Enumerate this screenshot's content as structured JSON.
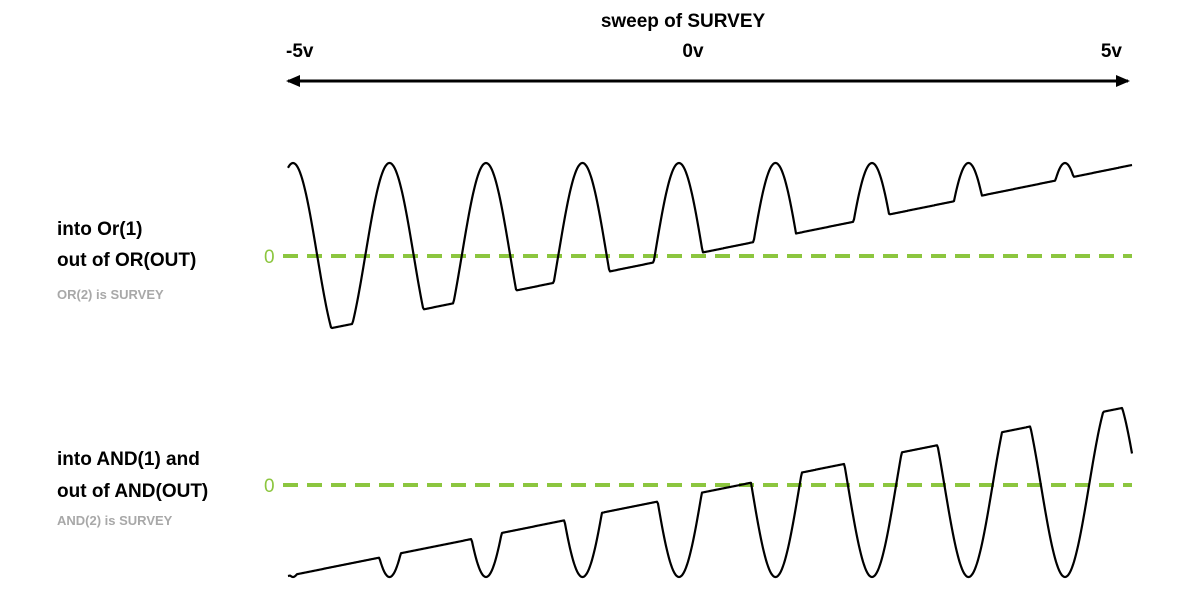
{
  "header": {
    "title": "sweep of SURVEY",
    "left_label": "-5v",
    "center_label": "0v",
    "right_label": "5v"
  },
  "or_panel": {
    "line1": "into Or(1)",
    "line2": "out of OR(OUT)",
    "note": "OR(2) is SURVEY",
    "zero_label": "0"
  },
  "and_panel": {
    "line1": "into AND(1) and",
    "line2": "out of AND(OUT)",
    "note": "AND(2) is SURVEY",
    "zero_label": "0"
  },
  "colors": {
    "zero_line": "#8cc63f",
    "note_text": "#a8a8a8",
    "wave": "#000000"
  }
}
